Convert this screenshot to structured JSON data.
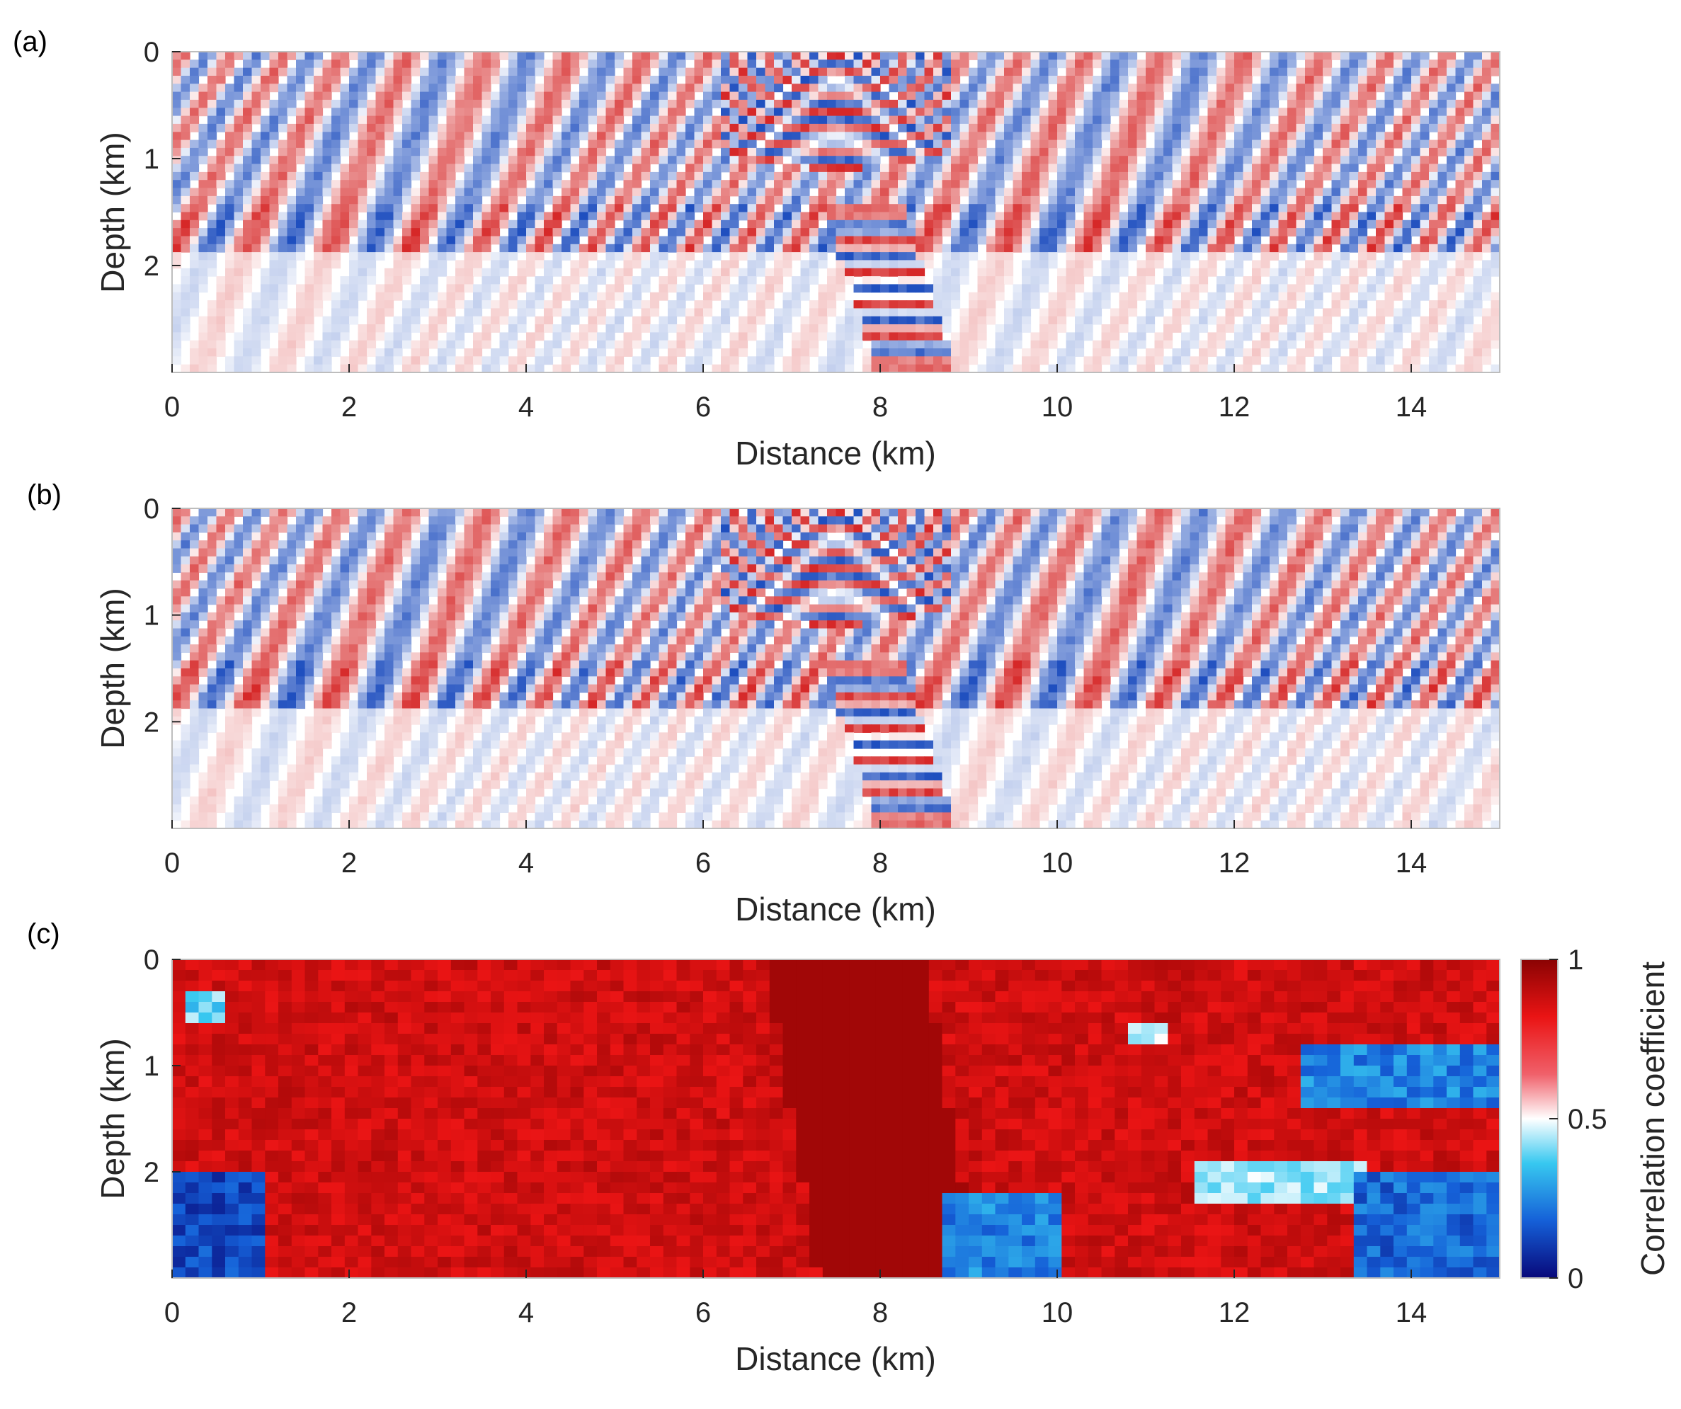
{
  "chart_data": [
    {
      "panel": "(a)",
      "type": "heatmap",
      "xlabel": "Distance (km)",
      "ylabel": "Depth (km)",
      "xlim": [
        0,
        15
      ],
      "ylim": [
        0,
        3
      ],
      "y_reversed": true,
      "xticks": [
        "0",
        "2",
        "4",
        "6",
        "8",
        "10",
        "12",
        "14"
      ],
      "yticks": [
        "0",
        "1",
        "2"
      ],
      "colormap": [
        "#1f4fbf",
        "#ffffff",
        "#d62828"
      ],
      "source_x": 7.5,
      "bright_layer_depth": 1.65,
      "steep_event": {
        "top_x": 7.8,
        "top_depth": 1.4,
        "bottom_x": 8.4,
        "bottom_depth": 3.0
      }
    },
    {
      "panel": "(b)",
      "type": "heatmap",
      "xlabel": "Distance (km)",
      "ylabel": "Depth (km)",
      "xlim": [
        0,
        15
      ],
      "ylim": [
        0,
        3
      ],
      "y_reversed": true,
      "xticks": [
        "0",
        "2",
        "4",
        "6",
        "8",
        "10",
        "12",
        "14"
      ],
      "yticks": [
        "0",
        "1",
        "2"
      ],
      "colormap": [
        "#1f4fbf",
        "#ffffff",
        "#d62828"
      ],
      "source_x": 7.5,
      "bright_layer_depth": 1.65,
      "steep_event": {
        "top_x": 7.8,
        "top_depth": 1.4,
        "bottom_x": 8.4,
        "bottom_depth": 3.0
      }
    },
    {
      "panel": "(c)",
      "type": "heatmap",
      "xlabel": "Distance (km)",
      "ylabel": "Depth (km)",
      "xlim": [
        0,
        15
      ],
      "ylim": [
        0,
        3
      ],
      "y_reversed": true,
      "xticks": [
        "0",
        "2",
        "4",
        "6",
        "8",
        "10",
        "12",
        "14"
      ],
      "yticks": [
        "0",
        "1",
        "2"
      ],
      "colorbar": {
        "label": "Correlation coefficient",
        "range": [
          0,
          1
        ],
        "ticks": [
          "0",
          "0.5",
          "1"
        ],
        "colormap": [
          "#08087a",
          "#1560d8",
          "#37c8f0",
          "#ffffff",
          "#f0606a",
          "#ea1414",
          "#8a0303"
        ]
      },
      "background_value": 0.88,
      "low_regions": [
        {
          "x": [
            0.0,
            1.1
          ],
          "depth": [
            2.0,
            3.0
          ],
          "value": 0.05
        },
        {
          "x": [
            0.1,
            0.6
          ],
          "depth": [
            0.35,
            0.6
          ],
          "value": 0.3
        },
        {
          "x": [
            12.8,
            15.0
          ],
          "depth": [
            0.8,
            1.35
          ],
          "value": 0.15
        },
        {
          "x": [
            13.3,
            15.0
          ],
          "depth": [
            2.0,
            2.95
          ],
          "value": 0.1
        },
        {
          "x": [
            8.7,
            10.1
          ],
          "depth": [
            2.2,
            3.0
          ],
          "value": 0.15
        },
        {
          "x": [
            10.8,
            11.3
          ],
          "depth": [
            0.65,
            0.8
          ],
          "value": 0.4
        },
        {
          "x": [
            11.5,
            13.5
          ],
          "depth": [
            1.9,
            2.3
          ],
          "value": 0.35
        }
      ]
    }
  ],
  "panel_labels": [
    "(a)",
    "(b)",
    "(c)"
  ]
}
